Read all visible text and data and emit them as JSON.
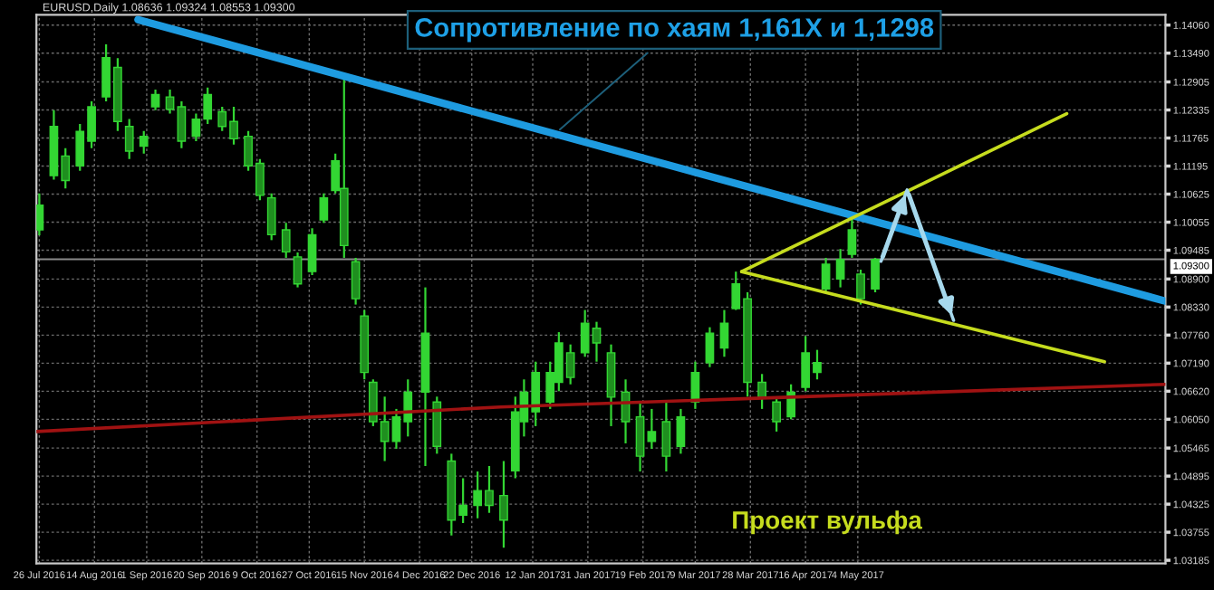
{
  "chart_data": {
    "type": "candlestick",
    "title": "EURUSD,Daily 1.08636 1.09324 1.08553 1.09300",
    "xlim": [
      "2016-07-25",
      "2017-08-18"
    ],
    "ylim": [
      1.0312,
      1.1427
    ],
    "xticks": [
      {
        "value": "2016-07-26",
        "label": "26 Jul 2016"
      },
      {
        "value": "2016-08-14",
        "label": "14 Aug 2016"
      },
      {
        "value": "2016-09-01",
        "label": "1 Sep 2016"
      },
      {
        "value": "2016-09-20",
        "label": "20 Sep 2016"
      },
      {
        "value": "2016-10-09",
        "label": "9 Oct 2016"
      },
      {
        "value": "2016-10-27",
        "label": "27 Oct 2016"
      },
      {
        "value": "2016-11-15",
        "label": "15 Nov 2016"
      },
      {
        "value": "2016-12-04",
        "label": "4 Dec 2016"
      },
      {
        "value": "2016-12-22",
        "label": "22 Dec 2016"
      },
      {
        "value": "2017-01-12",
        "label": "12 Jan 2017"
      },
      {
        "value": "2017-01-31",
        "label": "31 Jan 2017"
      },
      {
        "value": "2017-02-19",
        "label": "19 Feb 2017"
      },
      {
        "value": "2017-03-09",
        "label": "9 Mar 2017"
      },
      {
        "value": "2017-03-28",
        "label": "28 Mar 2017"
      },
      {
        "value": "2017-04-16",
        "label": "16 Apr 2017"
      },
      {
        "value": "2017-05-04",
        "label": "4 May 2017"
      }
    ],
    "yticks": [
      {
        "value": 1.1406,
        "label": "1.14060"
      },
      {
        "value": 1.1349,
        "label": "1.13490"
      },
      {
        "value": 1.12905,
        "label": "1.12905"
      },
      {
        "value": 1.12335,
        "label": "1.12335"
      },
      {
        "value": 1.11765,
        "label": "1.11765"
      },
      {
        "value": 1.11195,
        "label": "1.11195"
      },
      {
        "value": 1.10625,
        "label": "1.10625"
      },
      {
        "value": 1.10055,
        "label": "1.10055"
      },
      {
        "value": 1.09485,
        "label": "1.09485"
      },
      {
        "value": 1.089,
        "label": "1.08900"
      },
      {
        "value": 1.0833,
        "label": "1.08330"
      },
      {
        "value": 1.0776,
        "label": "1.07760"
      },
      {
        "value": 1.0719,
        "label": "1.07190"
      },
      {
        "value": 1.0662,
        "label": "1.06620"
      },
      {
        "value": 1.0605,
        "label": "1.06050"
      },
      {
        "value": 1.05465,
        "label": "1.05465"
      },
      {
        "value": 1.04895,
        "label": "1.04895"
      },
      {
        "value": 1.04325,
        "label": "1.04325"
      },
      {
        "value": 1.03755,
        "label": "1.03755"
      },
      {
        "value": 1.03185,
        "label": "1.03185"
      }
    ],
    "grid": true,
    "series": [
      {
        "color": "#33d633",
        "x": [
          "2016-07-26",
          "2016-07-31",
          "2016-08-04",
          "2016-08-09",
          "2016-08-13",
          "2016-08-18",
          "2016-08-22",
          "2016-08-26",
          "2016-08-31",
          "2016-09-04",
          "2016-09-09",
          "2016-09-13",
          "2016-09-18",
          "2016-09-22",
          "2016-09-27",
          "2016-10-01",
          "2016-10-06",
          "2016-10-10",
          "2016-10-14",
          "2016-10-19",
          "2016-10-23",
          "2016-10-28",
          "2016-11-01",
          "2016-11-05",
          "2016-11-08",
          "2016-11-12",
          "2016-11-15",
          "2016-11-18",
          "2016-11-22",
          "2016-11-26",
          "2016-11-30",
          "2016-12-06",
          "2016-12-10",
          "2016-12-15",
          "2016-12-19",
          "2016-12-24",
          "2016-12-28",
          "2017-01-02",
          "2017-01-06",
          "2017-01-09",
          "2017-01-13",
          "2017-01-18",
          "2017-01-21",
          "2017-01-25",
          "2017-01-30",
          "2017-02-03",
          "2017-02-08",
          "2017-02-13",
          "2017-02-18",
          "2017-02-22",
          "2017-02-27",
          "2017-03-04",
          "2017-03-09",
          "2017-03-14",
          "2017-03-19",
          "2017-03-23",
          "2017-03-27",
          "2017-04-01",
          "2017-04-06",
          "2017-04-11",
          "2017-04-16",
          "2017-04-20",
          "2017-04-23",
          "2017-04-28",
          "2017-05-02",
          "2017-05-05",
          "2017-05-10"
        ],
        "ohlc": [
          [
            1.099,
            1.1064,
            1.0979,
            1.104
          ],
          [
            1.11,
            1.1233,
            1.1092,
            1.12
          ],
          [
            1.114,
            1.1156,
            1.1074,
            1.109
          ],
          [
            1.112,
            1.1205,
            1.111,
            1.119
          ],
          [
            1.117,
            1.1251,
            1.1156,
            1.124
          ],
          [
            1.126,
            1.1367,
            1.1251,
            1.134
          ],
          [
            1.132,
            1.1339,
            1.1191,
            1.121
          ],
          [
            1.12,
            1.1215,
            1.1134,
            1.115
          ],
          [
            1.116,
            1.1191,
            1.1145,
            1.118
          ],
          [
            1.124,
            1.1275,
            1.1233,
            1.1265
          ],
          [
            1.126,
            1.1275,
            1.1226,
            1.1235
          ],
          [
            1.124,
            1.1251,
            1.1156,
            1.117
          ],
          [
            1.118,
            1.1226,
            1.117,
            1.1215
          ],
          [
            1.1215,
            1.1279,
            1.1205,
            1.1265
          ],
          [
            1.123,
            1.124,
            1.1191,
            1.12
          ],
          [
            1.121,
            1.124,
            1.1163,
            1.1175
          ],
          [
            1.118,
            1.1191,
            1.111,
            1.112
          ],
          [
            1.1125,
            1.1134,
            1.105,
            1.106
          ],
          [
            1.1055,
            1.1064,
            1.0969,
            1.098
          ],
          [
            1.099,
            1.1004,
            1.0933,
            1.0945
          ],
          [
            1.0935,
            1.0944,
            1.0873,
            1.088
          ],
          [
            1.0905,
            1.0993,
            1.0898,
            1.098
          ],
          [
            1.101,
            1.1064,
            1.1004,
            1.1055
          ],
          [
            1.107,
            1.1145,
            1.1064,
            1.113
          ],
          [
            1.1074,
            1.1297,
            1.0933,
            1.0958
          ],
          [
            1.0925,
            1.0933,
            1.0838,
            1.085
          ],
          [
            1.0815,
            1.0827,
            1.0686,
            1.07
          ],
          [
            1.068,
            1.0686,
            1.0591,
            1.06
          ],
          [
            1.06,
            1.0651,
            1.052,
            1.056
          ],
          [
            1.056,
            1.0626,
            1.0545,
            1.061
          ],
          [
            1.06,
            1.0686,
            1.057,
            1.066
          ],
          [
            1.066,
            1.0873,
            1.051,
            1.078
          ],
          [
            1.064,
            1.0651,
            1.0535,
            1.055
          ],
          [
            1.052,
            1.0535,
            1.0369,
            1.04
          ],
          [
            1.041,
            1.0485,
            1.0394,
            1.043
          ],
          [
            1.043,
            1.0499,
            1.0404,
            1.046
          ],
          [
            1.046,
            1.051,
            1.0415,
            1.043
          ],
          [
            1.045,
            1.052,
            1.0344,
            1.04
          ],
          [
            1.05,
            1.0651,
            1.0485,
            1.062
          ],
          [
            1.06,
            1.0686,
            1.057,
            1.066
          ],
          [
            1.062,
            1.0722,
            1.0591,
            1.07
          ],
          [
            1.064,
            1.0722,
            1.0626,
            1.07
          ],
          [
            1.068,
            1.0782,
            1.0662,
            1.076
          ],
          [
            1.074,
            1.0757,
            1.0676,
            1.069
          ],
          [
            1.074,
            1.0827,
            1.0732,
            1.08
          ],
          [
            1.079,
            1.0803,
            1.0722,
            1.076
          ],
          [
            1.074,
            1.0757,
            1.0591,
            1.065
          ],
          [
            1.066,
            1.0686,
            1.0556,
            1.06
          ],
          [
            1.061,
            1.064,
            1.0499,
            1.053
          ],
          [
            1.056,
            1.0626,
            1.0545,
            1.058
          ],
          [
            1.06,
            1.064,
            1.0499,
            1.053
          ],
          [
            1.055,
            1.0626,
            1.0535,
            1.061
          ],
          [
            1.064,
            1.0722,
            1.0626,
            1.07
          ],
          [
            1.072,
            1.0792,
            1.0711,
            1.078
          ],
          [
            1.075,
            1.0827,
            1.0732,
            1.08
          ],
          [
            1.083,
            1.0905,
            1.0827,
            1.088
          ],
          [
            1.085,
            1.0863,
            1.0651,
            1.068
          ],
          [
            1.068,
            1.0697,
            1.0626,
            1.065
          ],
          [
            1.064,
            1.0651,
            1.058,
            1.06
          ],
          [
            1.061,
            1.0676,
            1.0605,
            1.066
          ],
          [
            1.067,
            1.0774,
            1.0662,
            1.074
          ],
          [
            1.07,
            1.0746,
            1.0686,
            1.072
          ],
          [
            1.087,
            1.0933,
            1.0863,
            1.092
          ],
          [
            1.089,
            1.0951,
            1.0873,
            1.093
          ],
          [
            1.094,
            1.1021,
            1.0933,
            1.099
          ],
          [
            1.09,
            1.0909,
            1.0838,
            1.085
          ],
          [
            1.087,
            1.0933,
            1.0863,
            1.093
          ]
        ]
      },
      {
        "type": "line",
        "color": "#1e9be0",
        "x": [
          "2016-08-29",
          "2017-08-18"
        ],
        "values": [
          1.1417,
          1.0845
        ]
      },
      {
        "type": "line",
        "color": "#c6dc1e",
        "x": [
          "2017-03-25",
          "2017-07-15"
        ],
        "values": [
          1.0905,
          1.1226
        ]
      },
      {
        "type": "line",
        "color": "#c6dc1e",
        "x": [
          "2017-03-25",
          "2017-07-28"
        ],
        "values": [
          1.0905,
          1.0722
        ]
      },
      {
        "type": "line",
        "color": "#a6d8ec",
        "x": [
          "2017-05-12",
          "2017-05-21",
          "2017-06-06"
        ],
        "values": [
          1.0926,
          1.1071,
          1.0806
        ]
      },
      {
        "type": "line",
        "color": "#a01212",
        "x": [
          "2016-07-25",
          "2017-01-01",
          "2017-08-18"
        ],
        "values": [
          1.058,
          1.063,
          1.0676
        ]
      }
    ],
    "ref_lines": [
      {
        "axis": "y",
        "value": 1.093,
        "label": "1.09300",
        "color": "#8a8a8a"
      }
    ],
    "annotations": [
      {
        "text": "Сопротивление по хаям 1,161X и 1,1298",
        "x": "2017-01-20",
        "y": 1.1187
      },
      "Проект вульфа"
    ]
  }
}
